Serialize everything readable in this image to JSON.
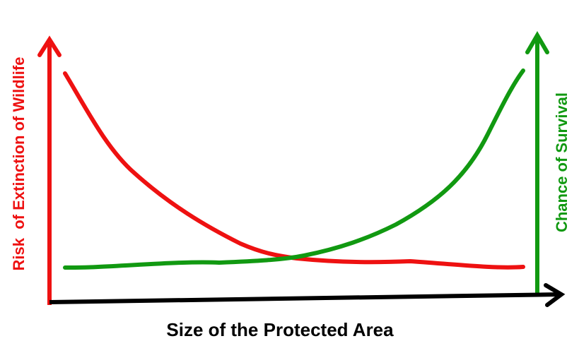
{
  "axes": {
    "x_label": "Size of the Protected Area",
    "left_label": "Risk  of Extinction of Wildlife",
    "right_label": "Chance of Survival"
  }
}
